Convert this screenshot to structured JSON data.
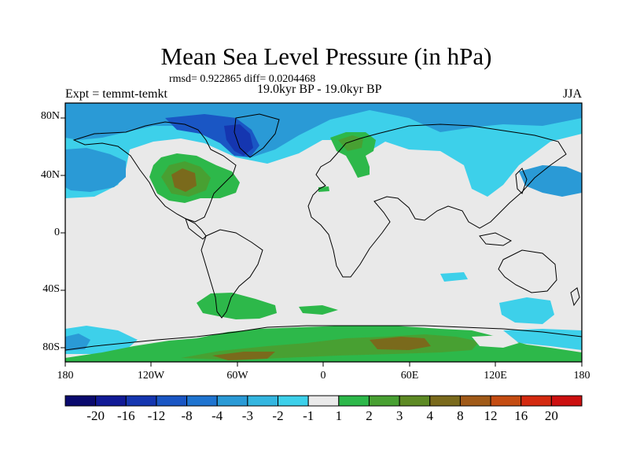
{
  "title": "Mean Sea Level Pressure (in hPa)",
  "stats": "rmsd= 0.922865 diff= 0.0204468",
  "expt": "Expt = temmt-temkt",
  "period": "19.0kyr BP - 19.0kyr BP",
  "season": "JJA",
  "lat_labels": [
    "80N",
    "40N",
    "0",
    "40S",
    "80S"
  ],
  "lon_labels": [
    "180",
    "120W",
    "60W",
    "0",
    "60E",
    "120E",
    "180"
  ],
  "colorbar": {
    "labels": [
      "-20",
      "-16",
      "-12",
      "-8",
      "-4",
      "-3",
      "-2",
      "-1",
      "1",
      "2",
      "3",
      "4",
      "8",
      "12",
      "16",
      "20"
    ],
    "colors": [
      "#0a0a6e",
      "#111a96",
      "#1536b0",
      "#1a56c4",
      "#1f74d0",
      "#2a9ad6",
      "#34b6e0",
      "#3dd0ea",
      "#eaeaea",
      "#2db84a",
      "#48a032",
      "#5d8a24",
      "#7a6a1c",
      "#a05a18",
      "#c44c12",
      "#d42a10",
      "#cc1010"
    ]
  },
  "map_colors": {
    "ocean": "#e9e9e9",
    "pos_light": "#2db84a",
    "pos_mid": "#48a032",
    "pos_strong": "#7a6a1c",
    "neg_light": "#3dd0ea",
    "neg_mid": "#2a9ad6",
    "neg_strong": "#1a56c4",
    "neg_deep": "#1536b0"
  }
}
